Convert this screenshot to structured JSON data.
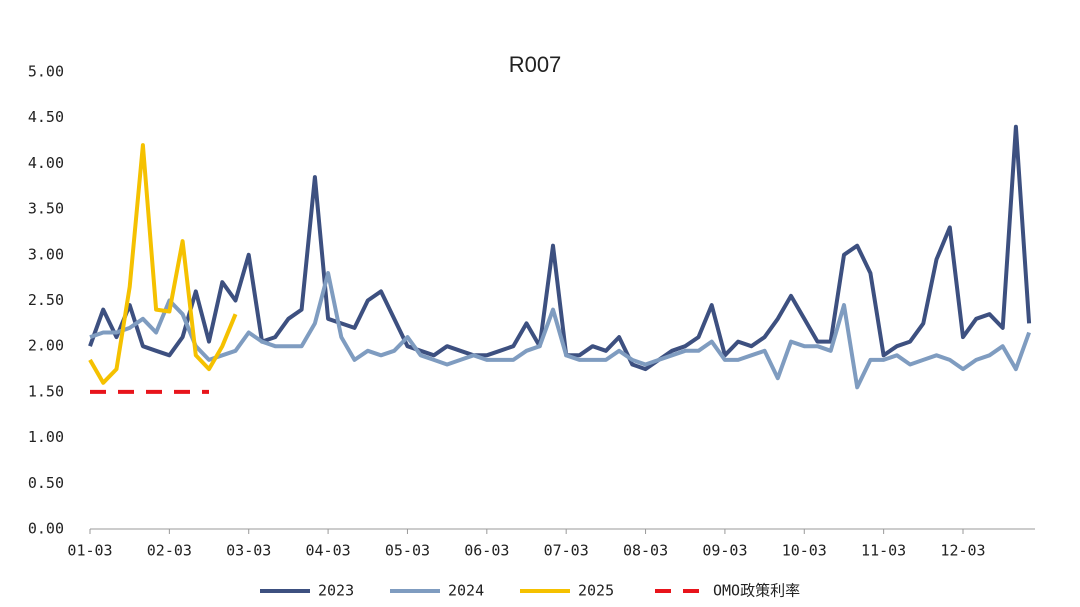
{
  "chart_data": {
    "type": "line",
    "title": "R007",
    "categories": [
      "01-03",
      null,
      null,
      null,
      null,
      null,
      "02-03",
      null,
      null,
      null,
      null,
      null,
      "03-03",
      null,
      null,
      null,
      null,
      null,
      "04-03",
      null,
      null,
      null,
      null,
      null,
      "05-03",
      null,
      null,
      null,
      null,
      null,
      "06-03",
      null,
      null,
      null,
      null,
      null,
      "07-03",
      null,
      null,
      null,
      null,
      null,
      "08-03",
      null,
      null,
      null,
      null,
      null,
      "09-03",
      null,
      null,
      null,
      null,
      null,
      "10-03",
      null,
      null,
      null,
      null,
      null,
      "11-03",
      null,
      null,
      null,
      null,
      null,
      "12-03",
      null,
      null,
      null,
      null,
      null
    ],
    "series": [
      {
        "name": "2023",
        "color": "#3d5080",
        "dash": false,
        "values": [
          2.0,
          2.4,
          2.1,
          2.45,
          2.0,
          1.95,
          1.9,
          2.1,
          2.6,
          2.05,
          2.7,
          2.5,
          3.0,
          2.05,
          2.1,
          2.3,
          2.4,
          3.85,
          2.3,
          2.25,
          2.2,
          2.5,
          2.6,
          2.3,
          2.0,
          1.95,
          1.9,
          2.0,
          1.95,
          1.9,
          1.9,
          1.95,
          2.0,
          2.25,
          2.0,
          3.1,
          1.9,
          1.9,
          2.0,
          1.95,
          2.1,
          1.8,
          1.75,
          1.85,
          1.95,
          2.0,
          2.1,
          2.45,
          1.9,
          2.05,
          2.0,
          2.1,
          2.3,
          2.55,
          2.3,
          2.05,
          2.05,
          3.0,
          3.1,
          2.8,
          1.9,
          2.0,
          2.05,
          2.25,
          2.95,
          3.3,
          2.1,
          2.3,
          2.35,
          2.2,
          4.4,
          2.25
        ]
      },
      {
        "name": "2024",
        "color": "#7f9cc0",
        "dash": false,
        "values": [
          2.1,
          2.15,
          2.15,
          2.2,
          2.3,
          2.15,
          2.5,
          2.35,
          2.0,
          1.85,
          1.9,
          1.95,
          2.15,
          2.05,
          2.0,
          2.0,
          2.0,
          2.25,
          2.8,
          2.1,
          1.85,
          1.95,
          1.9,
          1.95,
          2.1,
          1.9,
          1.85,
          1.8,
          1.85,
          1.9,
          1.85,
          1.85,
          1.85,
          1.95,
          2.0,
          2.4,
          1.9,
          1.85,
          1.85,
          1.85,
          1.95,
          1.85,
          1.8,
          1.85,
          1.9,
          1.95,
          1.95,
          2.05,
          1.85,
          1.85,
          1.9,
          1.95,
          1.65,
          2.05,
          2.0,
          2.0,
          1.95,
          2.45,
          1.55,
          1.85,
          1.85,
          1.9,
          1.8,
          1.85,
          1.9,
          1.85,
          1.75,
          1.85,
          1.9,
          2.0,
          1.75,
          2.15
        ]
      },
      {
        "name": "2025",
        "color": "#f5c100",
        "dash": false,
        "values": [
          1.85,
          1.6,
          1.75,
          2.65,
          4.2,
          2.4,
          2.38,
          3.15,
          1.9,
          1.75,
          2.0,
          2.35,
          null,
          null,
          null,
          null,
          null,
          null,
          null,
          null,
          null,
          null,
          null,
          null,
          null,
          null,
          null,
          null,
          null,
          null,
          null,
          null,
          null,
          null,
          null,
          null,
          null,
          null,
          null,
          null,
          null,
          null,
          null,
          null,
          null,
          null,
          null,
          null,
          null,
          null,
          null,
          null,
          null,
          null,
          null,
          null,
          null,
          null,
          null,
          null,
          null,
          null,
          null,
          null,
          null,
          null,
          null,
          null,
          null,
          null,
          null,
          null
        ]
      },
      {
        "name": "OMO政策利率",
        "color": "#e8141b",
        "dash": true,
        "values": [
          1.5,
          1.5,
          1.5,
          1.5,
          1.5,
          1.5,
          1.5,
          1.5,
          1.5,
          1.5,
          null,
          null,
          null,
          null,
          null,
          null,
          null,
          null,
          null,
          null,
          null,
          null,
          null,
          null,
          null,
          null,
          null,
          null,
          null,
          null,
          null,
          null,
          null,
          null,
          null,
          null,
          null,
          null,
          null,
          null,
          null,
          null,
          null,
          null,
          null,
          null,
          null,
          null,
          null,
          null,
          null,
          null,
          null,
          null,
          null,
          null,
          null,
          null,
          null,
          null,
          null,
          null,
          null,
          null,
          null,
          null,
          null,
          null,
          null,
          null,
          null,
          null
        ]
      }
    ],
    "ylim": [
      0,
      5
    ],
    "yticks": [
      {
        "value": 0,
        "label": "0.00"
      },
      {
        "value": 0.5,
        "label": "0.50"
      },
      {
        "value": 1,
        "label": "1.00"
      },
      {
        "value": 1.5,
        "label": "1.50"
      },
      {
        "value": 2,
        "label": "2.00"
      },
      {
        "value": 2.5,
        "label": "2.50"
      },
      {
        "value": 3,
        "label": "3.00"
      },
      {
        "value": 3.5,
        "label": "3.50"
      },
      {
        "value": 4,
        "label": "4.00"
      },
      {
        "value": 4.5,
        "label": "4.50"
      },
      {
        "value": 5,
        "label": "5.00"
      }
    ],
    "grid": false,
    "legend": "bottom"
  }
}
